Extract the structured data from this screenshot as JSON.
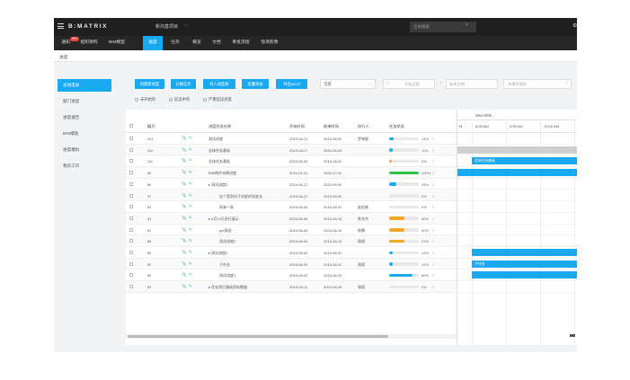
{
  "topbar": {
    "logo": "B:MATRIX",
    "project_name": "新鸿基项目",
    "project_chevron": "⌵",
    "search_placeholder": "全局搜索"
  },
  "nav": {
    "items": [
      {
        "label": "通知",
        "badge": "99+"
      },
      {
        "label": "组织架构"
      },
      {
        "label": "BIM模型"
      },
      {
        "label": "进度",
        "active": true
      },
      {
        "label": "任务"
      },
      {
        "label": "概览"
      },
      {
        "label": "文档"
      },
      {
        "label": "审批流程"
      },
      {
        "label": "现场影像"
      }
    ]
  },
  "breadcrumb": "进度",
  "sidebar": {
    "items": [
      {
        "label": "总进度表",
        "active": true
      },
      {
        "label": "部门进度"
      },
      {
        "label": "进度报告"
      },
      {
        "label": "BIM播放"
      },
      {
        "label": "进度模拟"
      },
      {
        "label": "我的工作"
      }
    ]
  },
  "toolbar": {
    "buttons": [
      "创建新进度",
      "分解任务",
      "导入进度表",
      "批量添加",
      "导出excel"
    ],
    "status_select": "全部",
    "select_chevron": "⌵",
    "date_start_placeholder": "开始日期",
    "date_end_placeholder": "结束日期",
    "date_arrow": "→",
    "keyword_placeholder": "关键字搜索"
  },
  "filters": [
    "未开始的",
    "延误中的",
    "严重延误进度"
  ],
  "table": {
    "headers": [
      "编号",
      "进度任务名称",
      "开始时间",
      "结束时间",
      "执行人",
      "任务状态"
    ],
    "rows": [
      {
        "id": "221",
        "name": "测试进度",
        "start": "2019-06-21",
        "end": "2019-06-29",
        "owner": "罗晓星",
        "pct": 14,
        "color": "#19a9f0"
      },
      {
        "id": "112",
        "name": "总体任务基础",
        "start": "2019-06-27",
        "end": "2020-06-26",
        "owner": "",
        "pct": 11,
        "color": "#19a9f0"
      },
      {
        "id": "111",
        "name": "总体任务基础",
        "start": "2019-06-05",
        "end": "2019-06-09",
        "owner": "",
        "pct": 8,
        "color": "#f5a623"
      },
      {
        "id": "96",
        "name": "BIM构件末期进度",
        "start": "2019-01-01",
        "end": "2019-12-31",
        "owner": "",
        "pct": 100,
        "color": "#2ec44a"
      },
      {
        "id": "86",
        "name": "▸ 测试进度3",
        "start": "2019-06-27",
        "end": "2019-09-05",
        "owner": "",
        "pct": 25,
        "color": "#19a9f0"
      },
      {
        "id": "97",
        "name": "这个是测试子进度的深度长...",
        "start": "2019-06-27",
        "end": "2019-09-05",
        "owner": "",
        "pct": 0,
        "color": "#19a9f0"
      },
      {
        "id": "93",
        "name": "再来一条",
        "start": "2019-06-08",
        "end": "2019-08-31",
        "owner": "赵伯勇",
        "pct": 0,
        "color": "#19a9f0"
      },
      {
        "id": "91",
        "name": "▸ 6月10日进行展示",
        "start": "2019-06-08",
        "end": "2019-06-18",
        "owner": "陈东杰",
        "pct": 50,
        "color": "#f5a623"
      },
      {
        "id": "92",
        "name": "ppt演说",
        "start": "2019-06-08",
        "end": "2019-06-18",
        "owner": "陈鹏",
        "pct": 50,
        "color": "#f5a623"
      },
      {
        "id": "88",
        "name": "测试进度2",
        "start": "2019-06-08",
        "end": "2019-06-18",
        "owner": "周斌",
        "pct": 51,
        "color": "#f5a623"
      },
      {
        "id": "85",
        "name": "▸ 测试进度2",
        "start": "2019-06-05",
        "end": "2019-08-31",
        "owner": "",
        "pct": 12,
        "color": "#19a9f0"
      },
      {
        "id": "90",
        "name": "子任务",
        "start": "2019-06-05",
        "end": "2019-08-31",
        "owner": "周斌",
        "pct": 12,
        "color": "#19a9f0"
      },
      {
        "id": "84",
        "name": "测试进度1",
        "start": "2019-06-05",
        "end": "2019-08-31",
        "owner": "",
        "pct": 80,
        "color": "#19a9f0"
      },
      {
        "id": "83",
        "name": "▸ 优化项目基础资料数据",
        "start": "2019-06-12",
        "end": "2019-06-28",
        "owner": "周斌",
        "pct": 0,
        "color": "#19a9f0"
      }
    ],
    "more_glyph": "≡"
  },
  "gantt": {
    "date_header": "Wed 6/05",
    "times": [
      "8:00 AM",
      "9:00 AM",
      "10:00 AM"
    ],
    "first_tick": "M",
    "bar_labels": {
      "r2": "总体任务基础",
      "r11": "子任务"
    }
  },
  "icons": {
    "pin": "📎",
    "edit": "✎",
    "search": "⌕",
    "kw": "○",
    "calendar": "▢",
    "top_right": "⚙"
  },
  "colors": {
    "accent": "#19a9f0",
    "topbar": "#1f1f1f",
    "nav": "#262626"
  }
}
